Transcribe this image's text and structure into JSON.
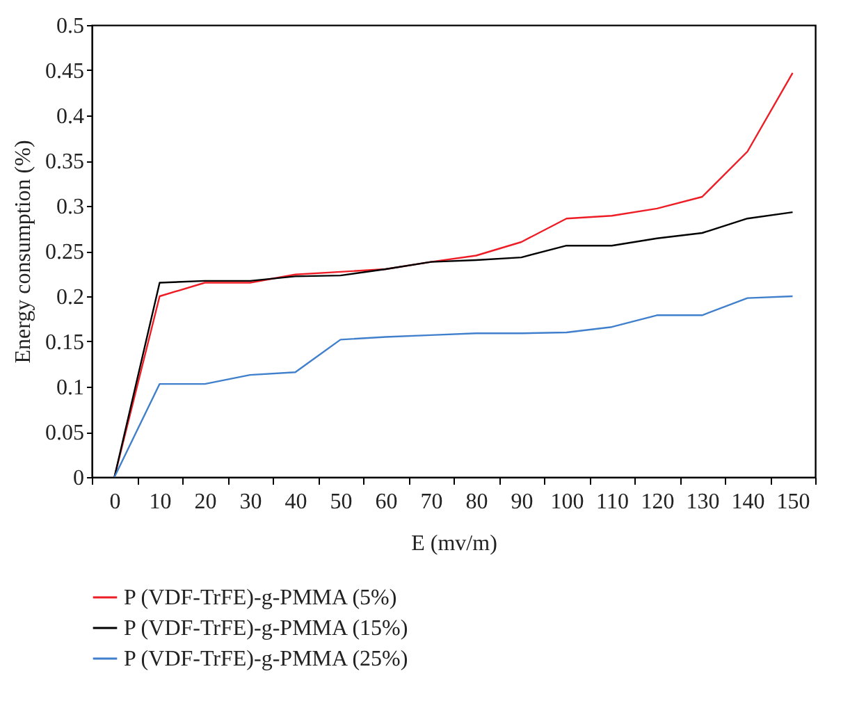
{
  "chart_data": {
    "type": "line",
    "xlabel": "E (mv/m)",
    "ylabel": "Energy consumption (%)",
    "categories": [
      "0",
      "10",
      "20",
      "30",
      "40",
      "50",
      "60",
      "70",
      "80",
      "90",
      "100",
      "110",
      "120",
      "130",
      "140",
      "150"
    ],
    "series": [
      {
        "name": "P (VDF-TrFE)-g-PMMA (5%)",
        "color": "#ee1c25",
        "values": [
          0,
          0.2,
          0.215,
          0.215,
          0.224,
          0.227,
          0.23,
          0.238,
          0.245,
          0.26,
          0.286,
          0.289,
          0.297,
          0.31,
          0.36,
          0.447
        ]
      },
      {
        "name": "P (VDF-TrFE)-g-PMMA (15%)",
        "color": "#000000",
        "values": [
          0,
          0.215,
          0.217,
          0.217,
          0.222,
          0.223,
          0.23,
          0.238,
          0.24,
          0.243,
          0.256,
          0.256,
          0.264,
          0.27,
          0.286,
          0.293
        ]
      },
      {
        "name": "P (VDF-TrFE)-g-PMMA (25%)",
        "color": "#3f7fcc",
        "values": [
          0,
          0.103,
          0.103,
          0.113,
          0.116,
          0.152,
          0.155,
          0.157,
          0.159,
          0.159,
          0.16,
          0.166,
          0.179,
          0.179,
          0.198,
          0.2
        ]
      }
    ],
    "ylim": [
      0,
      0.5
    ],
    "yticks": [
      0,
      0.05,
      0.1,
      0.15,
      0.2,
      0.25,
      0.3,
      0.35,
      0.4,
      0.45,
      0.5
    ],
    "grid": false,
    "legend": "bottom left"
  }
}
